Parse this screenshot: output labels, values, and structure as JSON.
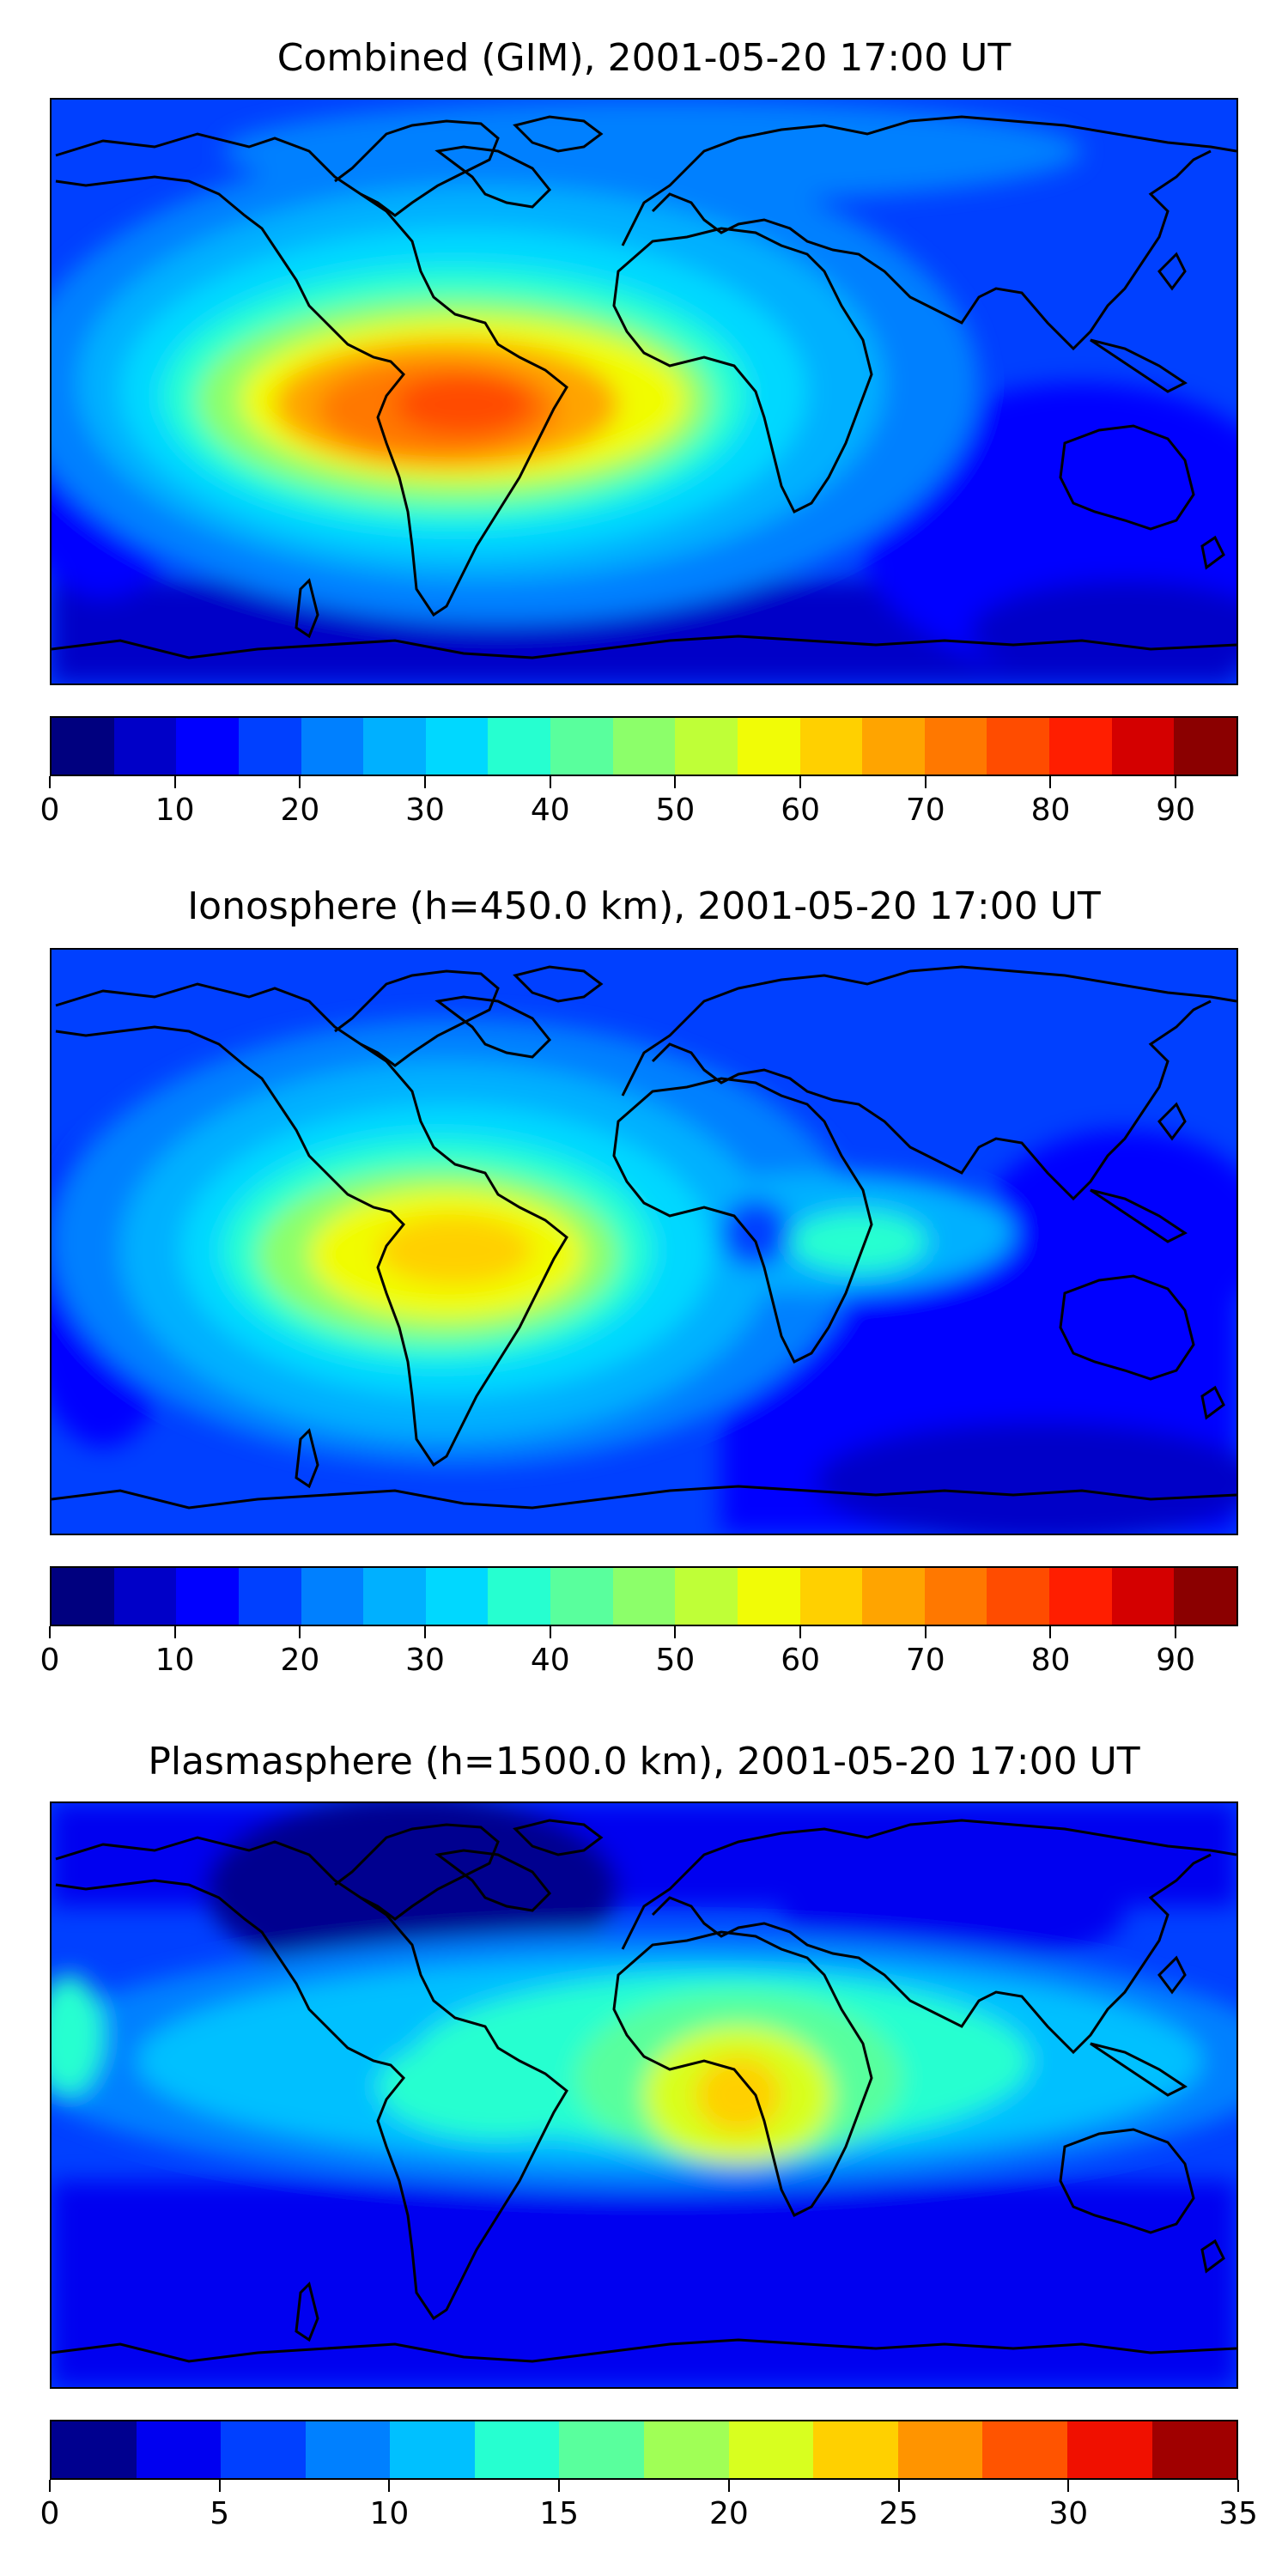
{
  "panels": [
    {
      "title": "Combined (GIM), 2001-05-20 17:00 UT",
      "colorbar": {
        "min": 0,
        "max": 95,
        "step": 5,
        "ticks": [
          "0",
          "10",
          "20",
          "30",
          "40",
          "50",
          "60",
          "70",
          "80",
          "90"
        ],
        "tick_values": [
          0,
          10,
          20,
          30,
          40,
          50,
          60,
          70,
          80,
          90
        ],
        "colors": [
          "#00007f",
          "#0000c8",
          "#0000ff",
          "#0040ff",
          "#0080ff",
          "#00b0ff",
          "#00d8ff",
          "#26ffd0",
          "#59ff9d",
          "#8cff6a",
          "#bfff37",
          "#f1fc06",
          "#ffd000",
          "#ffa400",
          "#ff7800",
          "#ff4c00",
          "#ff1e00",
          "#d40000",
          "#8b0000"
        ]
      }
    },
    {
      "title": "Ionosphere  (h=450.0 km), 2001-05-20 17:00 UT",
      "colorbar": {
        "min": 0,
        "max": 95,
        "step": 5,
        "ticks": [
          "0",
          "10",
          "20",
          "30",
          "40",
          "50",
          "60",
          "70",
          "80",
          "90"
        ],
        "tick_values": [
          0,
          10,
          20,
          30,
          40,
          50,
          60,
          70,
          80,
          90
        ],
        "colors": [
          "#00007f",
          "#0000c8",
          "#0000ff",
          "#0040ff",
          "#0080ff",
          "#00b0ff",
          "#00d8ff",
          "#26ffd0",
          "#59ff9d",
          "#8cff6a",
          "#bfff37",
          "#f1fc06",
          "#ffd000",
          "#ffa400",
          "#ff7800",
          "#ff4c00",
          "#ff1e00",
          "#d40000",
          "#8b0000"
        ]
      }
    },
    {
      "title": "Plasmasphere (h=1500.0 km), 2001-05-20 17:00 UT",
      "colorbar": {
        "min": 0,
        "max": 35,
        "step": 2.5,
        "ticks": [
          "0",
          "5",
          "10",
          "15",
          "20",
          "25",
          "30",
          "35"
        ],
        "tick_values": [
          0,
          5,
          10,
          15,
          20,
          25,
          30,
          35
        ],
        "colors": [
          "#00008f",
          "#0000f0",
          "#0040ff",
          "#0080ff",
          "#00c0ff",
          "#26ffd0",
          "#59ff9d",
          "#a0ff56",
          "#d8ff1f",
          "#ffd000",
          "#ff9400",
          "#ff5400",
          "#f01000",
          "#a00000"
        ]
      }
    }
  ]
}
